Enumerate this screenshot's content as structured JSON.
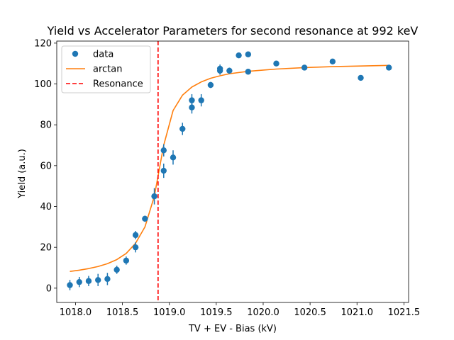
{
  "chart_data": {
    "type": "scatter",
    "title": "Yield vs Accelerator Parameters for second resonance at 992 keV",
    "xlabel": "TV + EV - Bias (kV)",
    "ylabel": "Yield (a.u.)",
    "xlim": [
      1017.8,
      1021.55
    ],
    "ylim": [
      -7,
      121
    ],
    "xticks": [
      1018.0,
      1018.5,
      1019.0,
      1019.5,
      1020.0,
      1020.5,
      1021.0,
      1021.5
    ],
    "xtick_labels": [
      "1018.0",
      "1018.5",
      "1019.0",
      "1019.5",
      "1020.0",
      "1020.5",
      "1021.0",
      "1021.5"
    ],
    "yticks": [
      0,
      20,
      40,
      60,
      80,
      100,
      120
    ],
    "ytick_labels": [
      "0",
      "20",
      "40",
      "60",
      "80",
      "100",
      "120"
    ],
    "grid": false,
    "legend_position": "top-left",
    "series": [
      {
        "name": "data",
        "kind": "errorbar-points",
        "color": "#1f77b4",
        "points": [
          {
            "x": 1017.94,
            "y": 1.5,
            "err": 2.5
          },
          {
            "x": 1018.04,
            "y": 3.0,
            "err": 2.5
          },
          {
            "x": 1018.14,
            "y": 3.5,
            "err": 2.5
          },
          {
            "x": 1018.24,
            "y": 4.0,
            "err": 3.0
          },
          {
            "x": 1018.34,
            "y": 4.5,
            "err": 3.0
          },
          {
            "x": 1018.44,
            "y": 9.0,
            "err": 2.0
          },
          {
            "x": 1018.54,
            "y": 13.5,
            "err": 2.0
          },
          {
            "x": 1018.64,
            "y": 26.0,
            "err": 2.0
          },
          {
            "x": 1018.64,
            "y": 20.0,
            "err": 2.5
          },
          {
            "x": 1018.74,
            "y": 34.0,
            "err": 1.5
          },
          {
            "x": 1018.84,
            "y": 45.0,
            "err": 4.0
          },
          {
            "x": 1018.94,
            "y": 67.5,
            "err": 3.0
          },
          {
            "x": 1018.94,
            "y": 57.5,
            "err": 3.5
          },
          {
            "x": 1019.04,
            "y": 64.0,
            "err": 3.5
          },
          {
            "x": 1019.14,
            "y": 78.0,
            "err": 3.0
          },
          {
            "x": 1019.24,
            "y": 92.0,
            "err": 3.0
          },
          {
            "x": 1019.24,
            "y": 88.5,
            "err": 3.0
          },
          {
            "x": 1019.34,
            "y": 92.0,
            "err": 3.0
          },
          {
            "x": 1019.44,
            "y": 99.5,
            "err": 1.5
          },
          {
            "x": 1019.54,
            "y": 107.5,
            "err": 2.0
          },
          {
            "x": 1019.54,
            "y": 106.5,
            "err": 2.0
          },
          {
            "x": 1019.64,
            "y": 106.5,
            "err": 1.5
          },
          {
            "x": 1019.74,
            "y": 114.0,
            "err": 1.0
          },
          {
            "x": 1019.84,
            "y": 114.5,
            "err": 1.0
          },
          {
            "x": 1019.84,
            "y": 106.0,
            "err": 1.0
          },
          {
            "x": 1020.14,
            "y": 110.0,
            "err": 1.0
          },
          {
            "x": 1020.44,
            "y": 108.0,
            "err": 1.0
          },
          {
            "x": 1020.74,
            "y": 111.0,
            "err": 1.0
          },
          {
            "x": 1021.04,
            "y": 103.0,
            "err": 1.0
          },
          {
            "x": 1021.34,
            "y": 108.0,
            "err": 1.0
          }
        ]
      },
      {
        "name": "arctan",
        "kind": "line",
        "color": "#ff7f0e",
        "points": [
          {
            "x": 1017.94,
            "y": 8.2
          },
          {
            "x": 1018.04,
            "y": 8.8
          },
          {
            "x": 1018.14,
            "y": 9.6
          },
          {
            "x": 1018.24,
            "y": 10.6
          },
          {
            "x": 1018.34,
            "y": 12.0
          },
          {
            "x": 1018.44,
            "y": 14.0
          },
          {
            "x": 1018.54,
            "y": 17.0
          },
          {
            "x": 1018.64,
            "y": 22.0
          },
          {
            "x": 1018.74,
            "y": 30.0
          },
          {
            "x": 1018.84,
            "y": 45.0
          },
          {
            "x": 1018.94,
            "y": 70.0
          },
          {
            "x": 1019.04,
            "y": 87.0
          },
          {
            "x": 1019.14,
            "y": 94.5
          },
          {
            "x": 1019.24,
            "y": 98.5
          },
          {
            "x": 1019.34,
            "y": 101.0
          },
          {
            "x": 1019.44,
            "y": 102.8
          },
          {
            "x": 1019.54,
            "y": 104.0
          },
          {
            "x": 1019.64,
            "y": 105.0
          },
          {
            "x": 1019.84,
            "y": 106.2
          },
          {
            "x": 1020.14,
            "y": 107.3
          },
          {
            "x": 1020.44,
            "y": 108.0
          },
          {
            "x": 1020.74,
            "y": 108.5
          },
          {
            "x": 1021.04,
            "y": 108.8
          },
          {
            "x": 1021.34,
            "y": 109.1
          }
        ]
      },
      {
        "name": "Resonance",
        "kind": "vline",
        "color": "#ff0000",
        "x": 1018.88
      }
    ]
  }
}
